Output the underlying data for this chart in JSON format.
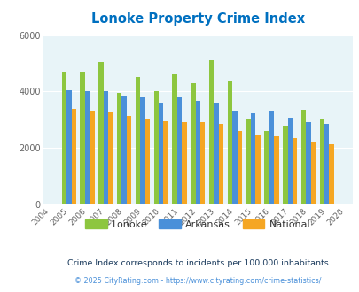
{
  "title": "Lonoke Property Crime Index",
  "years": [
    2004,
    2005,
    2006,
    2007,
    2008,
    2009,
    2010,
    2011,
    2012,
    2013,
    2014,
    2015,
    2016,
    2017,
    2018,
    2019,
    2020
  ],
  "lonoke": [
    null,
    4700,
    4700,
    5050,
    3950,
    4500,
    4000,
    4600,
    4300,
    5100,
    4400,
    3000,
    2600,
    2800,
    3350,
    3000,
    null
  ],
  "arkansas": [
    null,
    4050,
    4000,
    4000,
    3850,
    3800,
    3600,
    3800,
    3680,
    3600,
    3330,
    3220,
    3290,
    3080,
    2900,
    2850,
    null
  ],
  "national": [
    null,
    3400,
    3300,
    3250,
    3150,
    3050,
    2950,
    2900,
    2900,
    2850,
    2600,
    2450,
    2400,
    2350,
    2200,
    2120,
    null
  ],
  "colors": {
    "lonoke": "#8dc63f",
    "arkansas": "#4a90d9",
    "national": "#f5a623"
  },
  "ylim": [
    0,
    6000
  ],
  "yticks": [
    0,
    2000,
    4000,
    6000
  ],
  "background_color": "#e8f4f8",
  "title_color": "#0070c0",
  "subtitle": "Crime Index corresponds to incidents per 100,000 inhabitants",
  "footer": "© 2025 CityRating.com - https://www.cityrating.com/crime-statistics/",
  "subtitle_color": "#1a3a5c",
  "footer_color": "#4a90d9"
}
